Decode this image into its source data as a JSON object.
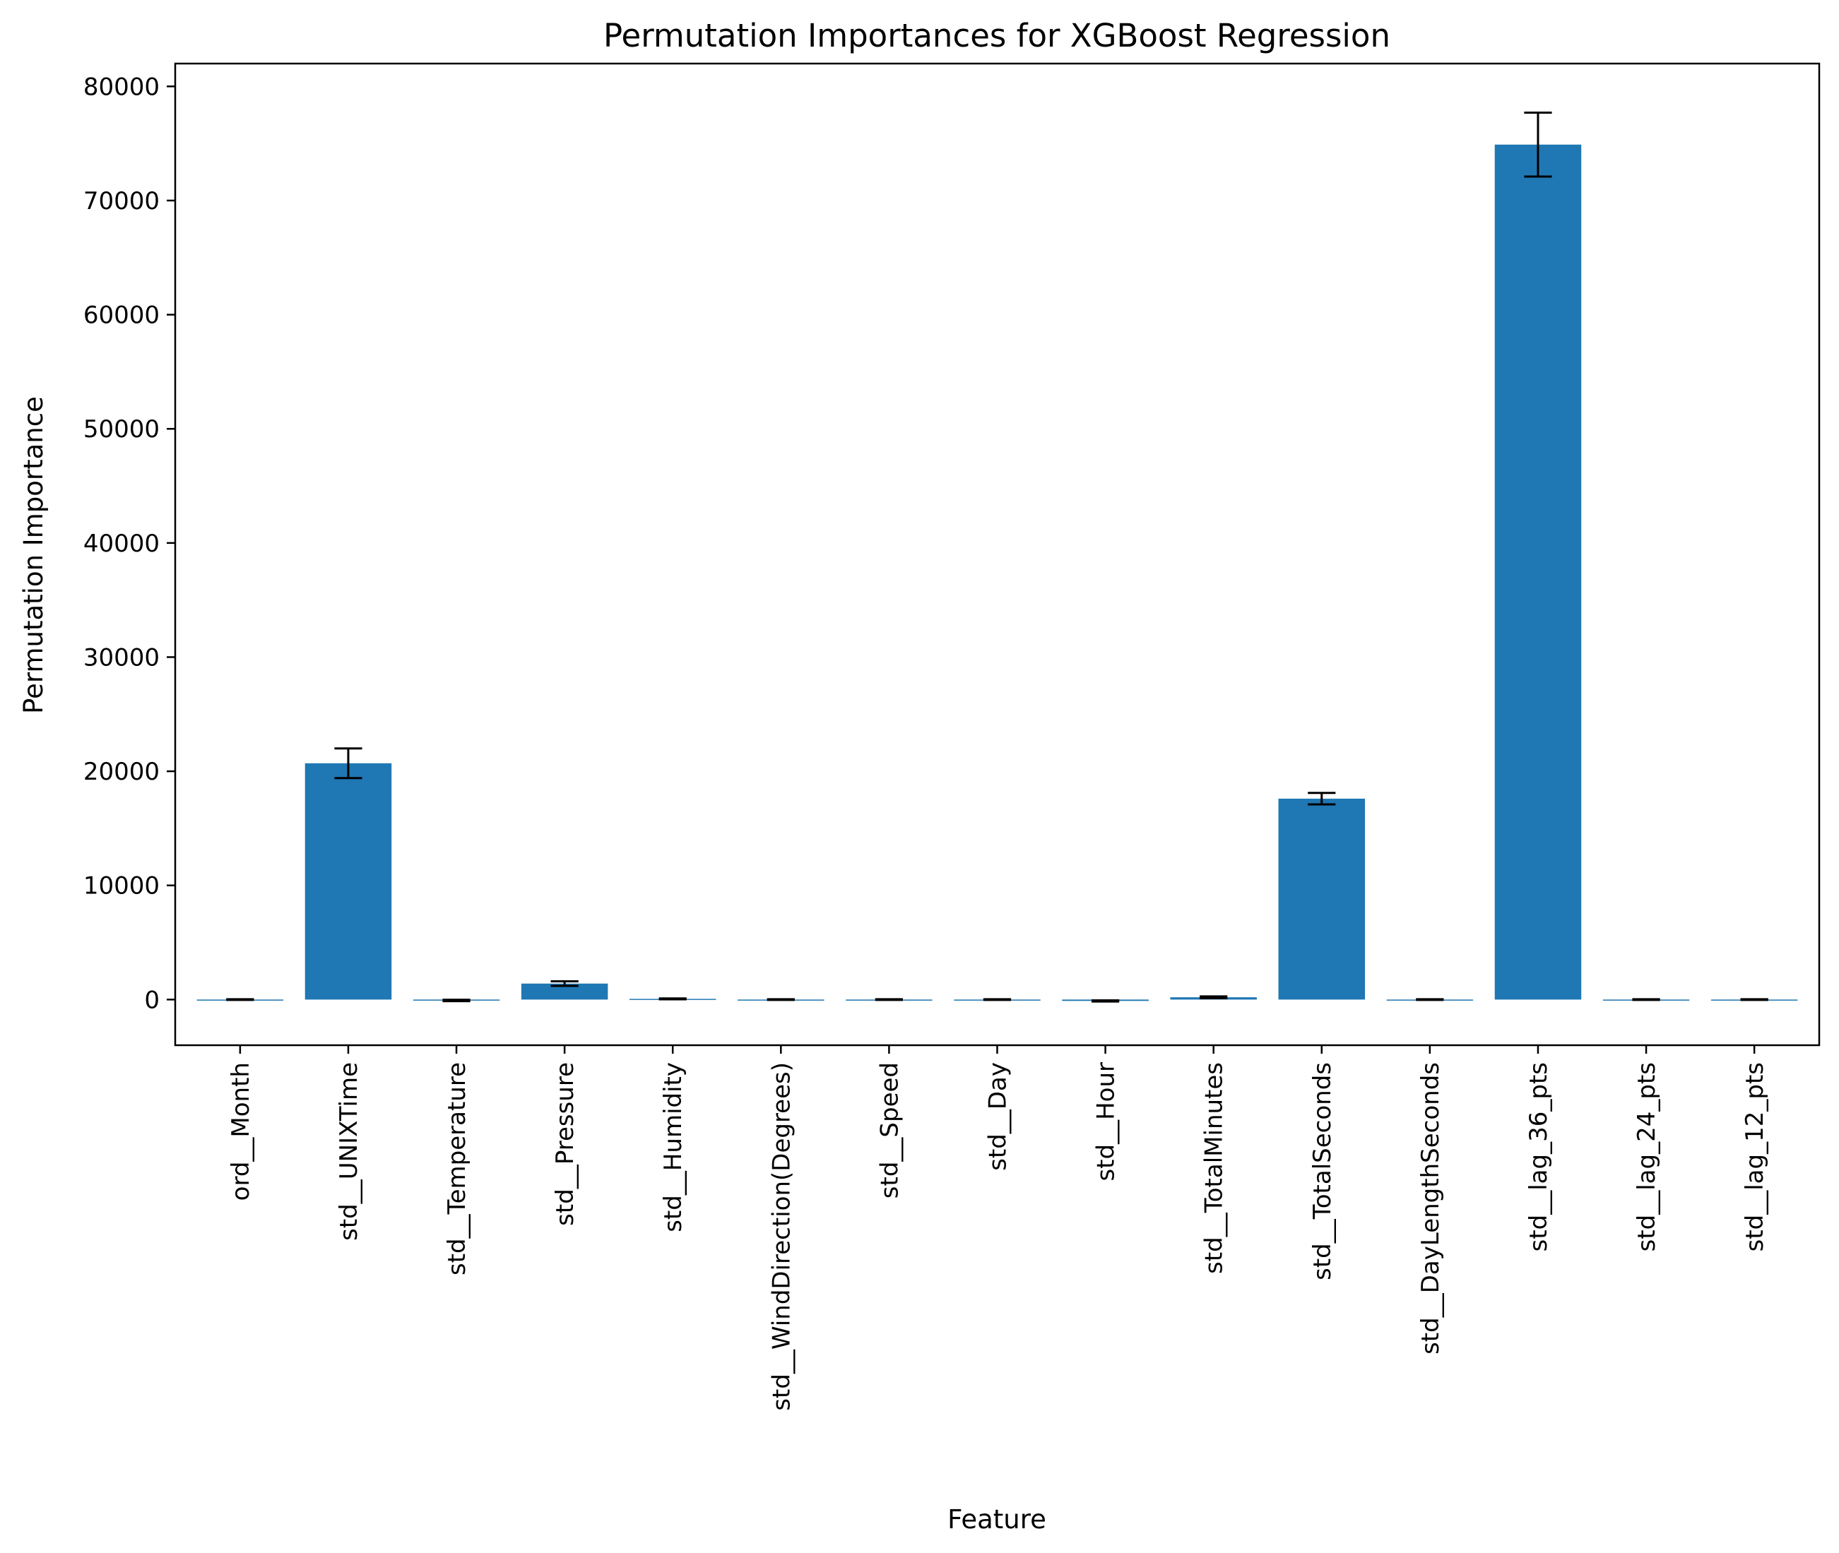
{
  "chart_data": {
    "type": "bar",
    "title": "Permutation Importances for XGBoost Regression",
    "xlabel": "Feature",
    "ylabel": "Permutation Importance",
    "ylim": [
      -4000,
      82000
    ],
    "yticks": [
      0,
      10000,
      20000,
      30000,
      40000,
      50000,
      60000,
      70000,
      80000
    ],
    "grid": false,
    "bar_color": "#1f77b4",
    "error_color": "#000000",
    "categories": [
      "ord__Month",
      "std__UNIXTime",
      "std__Temperature",
      "std__Pressure",
      "std__Humidity",
      "std__WindDirection(Degrees)",
      "std__Speed",
      "std__Day",
      "std__Hour",
      "std__TotalMinutes",
      "std__TotalSeconds",
      "std__DayLengthSeconds",
      "std__lag_36_pts",
      "std__lag_24_pts",
      "std__lag_12_pts"
    ],
    "values": [
      0,
      20700,
      -80,
      1400,
      60,
      0,
      0,
      0,
      -120,
      200,
      17600,
      0,
      74900,
      0,
      0
    ],
    "errors": [
      30,
      1300,
      60,
      200,
      40,
      30,
      30,
      30,
      50,
      80,
      500,
      30,
      2800,
      30,
      30
    ]
  }
}
